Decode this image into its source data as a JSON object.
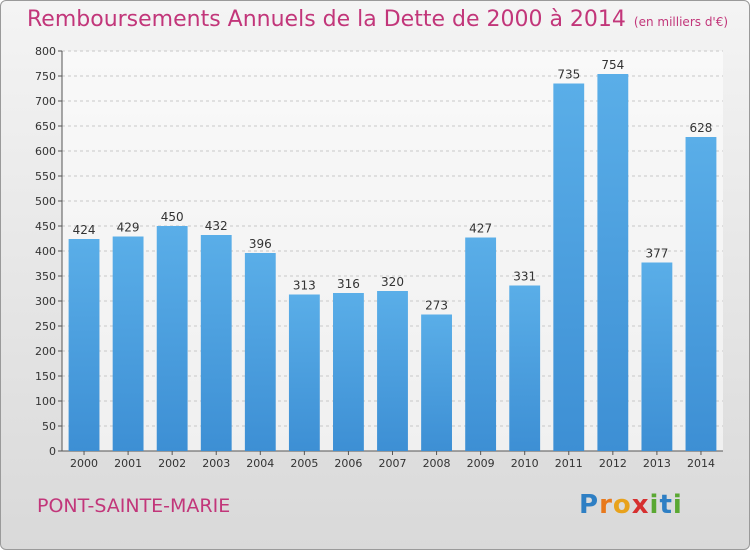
{
  "chart_data": {
    "type": "bar",
    "title": "Remboursements Annuels de la Dette de 2000 à 2014",
    "subtitle": "(en milliers d'€)",
    "categories": [
      "2000",
      "2001",
      "2002",
      "2003",
      "2004",
      "2005",
      "2006",
      "2007",
      "2008",
      "2009",
      "2010",
      "2011",
      "2012",
      "2013",
      "2014"
    ],
    "values": [
      424,
      429,
      450,
      432,
      396,
      313,
      316,
      320,
      273,
      427,
      331,
      735,
      754,
      377,
      628
    ],
    "ylim": [
      0,
      800
    ],
    "ytick_step": 50,
    "grid": true,
    "legend": "none",
    "colors": {
      "bar": "#3d8fd4",
      "bar_light": "#5aaee8",
      "title": "#c2367a"
    }
  },
  "footer": {
    "commune": "PONT-SAINTE-MARIE",
    "logo": [
      "P",
      "r",
      "o",
      "x",
      "i",
      "t",
      "i"
    ]
  }
}
